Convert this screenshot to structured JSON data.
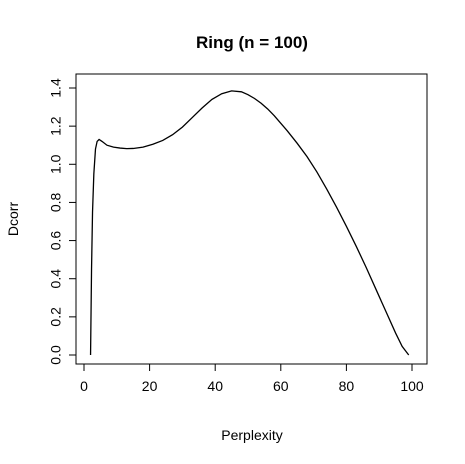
{
  "chart_data": {
    "type": "line",
    "title": "Ring (n = 100)",
    "xlabel": "Perplexity",
    "ylabel": "Dcorr",
    "xlim": [
      2,
      99
    ],
    "ylim": [
      0.0,
      1.38
    ],
    "x_ticks": [
      0,
      20,
      40,
      60,
      80,
      100
    ],
    "y_ticks": [
      0.0,
      0.2,
      0.4,
      0.6,
      0.8,
      1.0,
      1.2,
      1.4
    ],
    "x_tick_labels": [
      "0",
      "20",
      "40",
      "60",
      "80",
      "100"
    ],
    "y_tick_labels": [
      "0.0",
      "0.2",
      "0.4",
      "0.6",
      "0.8",
      "1.0",
      "1.2",
      "1.4"
    ],
    "grid": false,
    "series": [
      {
        "x": [
          2,
          2.3,
          2.6,
          3,
          3.5,
          4,
          4.6,
          5.5,
          7,
          9,
          11,
          13,
          15,
          18,
          21,
          24,
          27,
          30,
          33,
          36,
          39,
          42,
          45,
          48,
          50,
          52,
          54,
          56,
          58,
          60,
          62,
          65,
          68,
          71,
          74,
          77,
          80,
          83,
          86,
          89,
          92,
          95,
          97,
          99
        ],
        "y": [
          0.0,
          0.45,
          0.75,
          0.95,
          1.08,
          1.12,
          1.13,
          1.12,
          1.1,
          1.09,
          1.085,
          1.082,
          1.083,
          1.09,
          1.105,
          1.125,
          1.155,
          1.195,
          1.245,
          1.295,
          1.34,
          1.37,
          1.385,
          1.38,
          1.365,
          1.345,
          1.32,
          1.29,
          1.255,
          1.215,
          1.175,
          1.11,
          1.04,
          0.96,
          0.87,
          0.775,
          0.675,
          0.57,
          0.46,
          0.345,
          0.23,
          0.115,
          0.045,
          0.0
        ]
      }
    ]
  }
}
